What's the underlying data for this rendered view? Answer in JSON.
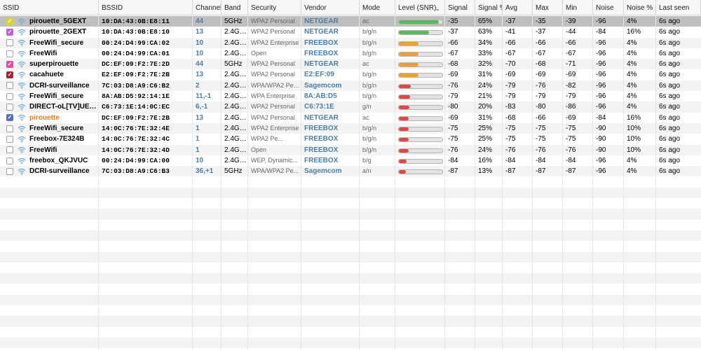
{
  "columns": [
    {
      "key": "ssid",
      "label": "SSID"
    },
    {
      "key": "bssid",
      "label": "BSSID"
    },
    {
      "key": "channel",
      "label": "Channel"
    },
    {
      "key": "band",
      "label": "Band"
    },
    {
      "key": "security",
      "label": "Security"
    },
    {
      "key": "vendor",
      "label": "Vendor"
    },
    {
      "key": "mode",
      "label": "Mode"
    },
    {
      "key": "level",
      "label": "Level (SNR)"
    },
    {
      "key": "signal",
      "label": "Signal"
    },
    {
      "key": "signal_pct",
      "label": "Signal %"
    },
    {
      "key": "avg",
      "label": "Avg"
    },
    {
      "key": "max",
      "label": "Max"
    },
    {
      "key": "min",
      "label": "Min"
    },
    {
      "key": "noise",
      "label": "Noise"
    },
    {
      "key": "noise_pct",
      "label": "Noise %"
    },
    {
      "key": "last_seen",
      "label": "Last seen"
    }
  ],
  "sort_indicator": "chevron-down-icon",
  "colors": {
    "green": "#5cb85c",
    "orange": "#f0a030",
    "red": "#e04848",
    "selected_row": "#bfbfbf",
    "link_blue": "#4a7ea8"
  },
  "rows": [
    {
      "checked": true,
      "check_color": "#d8d820",
      "selected": true,
      "ssid": "pirouette_5GEXT",
      "bssid": "10:DA:43:0B:E8:11",
      "channel": "44",
      "band": "5GHz",
      "security": "WPA2 Personal",
      "vendor": "NETGEAR",
      "mode": "ac",
      "level": 0.92,
      "level_color": "green",
      "signal": "-35",
      "signal_pct": "65%",
      "avg": "-37",
      "max": "-35",
      "min": "-39",
      "noise": "-96",
      "noise_pct": "4%",
      "last_seen": "6s ago"
    },
    {
      "checked": true,
      "check_color": "#c060e0",
      "selected": false,
      "ssid": "pirouette_2GEXT",
      "bssid": "10:DA:43:0B:E8:10",
      "channel": "13",
      "band": "2.4GHz",
      "security": "WPA2 Personal",
      "vendor": "NETGEAR",
      "mode": "b/g/n",
      "level": 0.7,
      "level_color": "green",
      "signal": "-37",
      "signal_pct": "63%",
      "avg": "-41",
      "max": "-37",
      "min": "-44",
      "noise": "-84",
      "noise_pct": "16%",
      "last_seen": "6s ago"
    },
    {
      "checked": false,
      "selected": false,
      "ssid": "FreeWifi_secure",
      "bssid": "00:24:D4:99:CA:02",
      "channel": "10",
      "band": "2.4GHz",
      "security": "WPA2 Enterprise",
      "vendor": "FREEBOX",
      "mode": "b/g/n",
      "level": 0.45,
      "level_color": "orange",
      "signal": "-66",
      "signal_pct": "34%",
      "avg": "-66",
      "max": "-66",
      "min": "-66",
      "noise": "-96",
      "noise_pct": "4%",
      "last_seen": "6s ago"
    },
    {
      "checked": false,
      "selected": false,
      "ssid": "FreeWifi",
      "bssid": "00:24:D4:99:CA:01",
      "channel": "10",
      "band": "2.4GHz",
      "security": "Open",
      "vendor": "FREEBOX",
      "mode": "b/g/n",
      "level": 0.45,
      "level_color": "orange",
      "signal": "-67",
      "signal_pct": "33%",
      "avg": "-67",
      "max": "-67",
      "min": "-67",
      "noise": "-96",
      "noise_pct": "4%",
      "last_seen": "6s ago"
    },
    {
      "checked": true,
      "check_color": "#e050a0",
      "selected": false,
      "ssid": "superpirouette",
      "bssid": "DC:EF:09:F2:7E:2D",
      "channel": "44",
      "band": "5GHz",
      "security": "WPA2 Personal",
      "vendor": "NETGEAR",
      "mode": "ac",
      "level": 0.45,
      "level_color": "orange",
      "signal": "-68",
      "signal_pct": "32%",
      "avg": "-70",
      "max": "-68",
      "min": "-71",
      "noise": "-96",
      "noise_pct": "4%",
      "last_seen": "6s ago"
    },
    {
      "checked": true,
      "check_color": "#a02830",
      "selected": false,
      "ssid": "cacahuete",
      "bssid": "E2:EF:09:F2:7E:2B",
      "channel": "13",
      "band": "2.4GHz",
      "security": "WPA2 Personal",
      "vendor": "E2:EF:09",
      "mode": "b/g/n",
      "level": 0.45,
      "level_color": "orange",
      "signal": "-69",
      "signal_pct": "31%",
      "avg": "-69",
      "max": "-69",
      "min": "-69",
      "noise": "-96",
      "noise_pct": "4%",
      "last_seen": "6s ago"
    },
    {
      "checked": false,
      "selected": false,
      "ssid": "DCRI-surveillance",
      "bssid": "7C:03:D8:A9:C6:B2",
      "channel": "2",
      "band": "2.4GHz",
      "security": "WPA/WPA2 Personal",
      "vendor": "Sagemcom",
      "mode": "b/g/n",
      "level": 0.28,
      "level_color": "red",
      "signal": "-76",
      "signal_pct": "24%",
      "avg": "-79",
      "max": "-76",
      "min": "-82",
      "noise": "-96",
      "noise_pct": "4%",
      "last_seen": "6s ago"
    },
    {
      "checked": false,
      "selected": false,
      "ssid": "FreeWifi_secure",
      "bssid": "8A:AB:D5:92:14:1E",
      "channel": "11,-1",
      "band": "2.4GHz",
      "security": "WPA Enterprise",
      "vendor": "8A:AB:D5",
      "mode": "b/g/n",
      "level": 0.26,
      "level_color": "red",
      "signal": "-79",
      "signal_pct": "21%",
      "avg": "-79",
      "max": "-79",
      "min": "-79",
      "noise": "-96",
      "noise_pct": "4%",
      "last_seen": "6s ago"
    },
    {
      "checked": false,
      "selected": false,
      "ssid": "DIRECT-oL[TV]UE4...",
      "bssid": "C6:73:1E:14:0C:EC",
      "channel": "6,-1",
      "band": "2.4GHz",
      "security": "WPA2 Personal",
      "vendor": "C6:73:1E",
      "mode": "g/n",
      "level": 0.24,
      "level_color": "red",
      "signal": "-80",
      "signal_pct": "20%",
      "avg": "-83",
      "max": "-80",
      "min": "-86",
      "noise": "-96",
      "noise_pct": "4%",
      "last_seen": "6s ago"
    },
    {
      "checked": true,
      "check_color": "#5070c0",
      "selected": false,
      "orange_ssid": true,
      "ssid": "pirouette",
      "bssid": "DC:EF:09:F2:7E:2B",
      "channel": "13",
      "band": "2.4GHz",
      "security": "WPA2 Personal",
      "vendor": "NETGEAR",
      "mode": "ac",
      "level": 0.22,
      "level_color": "red",
      "signal": "-69",
      "signal_pct": "31%",
      "avg": "-68",
      "max": "-66",
      "min": "-69",
      "noise": "-84",
      "noise_pct": "16%",
      "last_seen": "6s ago"
    },
    {
      "checked": false,
      "selected": false,
      "ssid": "FreeWifi_secure",
      "bssid": "14:0C:76:7E:32:4E",
      "channel": "1",
      "band": "2.4GHz",
      "security": "WPA2 Enterprise",
      "vendor": "FREEBOX",
      "mode": "b/g/n",
      "level": 0.22,
      "level_color": "red",
      "signal": "-75",
      "signal_pct": "25%",
      "avg": "-75",
      "max": "-75",
      "min": "-75",
      "noise": "-90",
      "noise_pct": "10%",
      "last_seen": "6s ago"
    },
    {
      "checked": false,
      "selected": false,
      "ssid": "Freebox-7E324B",
      "bssid": "14:0C:76:7E:32:4C",
      "channel": "1",
      "band": "2.4GHz",
      "security": "WPA2 Pe...",
      "vendor": "FREEBOX",
      "mode": "b/g/n",
      "level": 0.22,
      "level_color": "red",
      "signal": "-75",
      "signal_pct": "25%",
      "avg": "-75",
      "max": "-75",
      "min": "-75",
      "noise": "-90",
      "noise_pct": "10%",
      "last_seen": "6s ago"
    },
    {
      "checked": false,
      "selected": false,
      "ssid": "FreeWifi",
      "bssid": "14:0C:76:7E:32:4D",
      "channel": "1",
      "band": "2.4GHz",
      "security": "Open",
      "vendor": "FREEBOX",
      "mode": "b/g/n",
      "level": 0.22,
      "level_color": "red",
      "signal": "-76",
      "signal_pct": "24%",
      "avg": "-76",
      "max": "-76",
      "min": "-76",
      "noise": "-90",
      "noise_pct": "10%",
      "last_seen": "6s ago"
    },
    {
      "checked": false,
      "selected": false,
      "ssid": "freebox_QKJVUC",
      "bssid": "00:24:D4:99:CA:00",
      "channel": "10",
      "band": "2.4GHz",
      "security": "WEP, Dynamic...",
      "vendor": "FREEBOX",
      "mode": "b/g",
      "level": 0.18,
      "level_color": "red",
      "signal": "-84",
      "signal_pct": "16%",
      "avg": "-84",
      "max": "-84",
      "min": "-84",
      "noise": "-96",
      "noise_pct": "4%",
      "last_seen": "6s ago"
    },
    {
      "checked": false,
      "selected": false,
      "ssid": "DCRI-surveillance",
      "bssid": "7C:03:D8:A9:C6:B3",
      "channel": "36,+1",
      "band": "5GHz",
      "security": "WPA/WPA2 Pe...",
      "vendor": "Sagemcom",
      "mode": "a/n",
      "level": 0.16,
      "level_color": "red",
      "signal": "-87",
      "signal_pct": "13%",
      "avg": "-87",
      "max": "-87",
      "min": "-87",
      "noise": "-96",
      "noise_pct": "4%",
      "last_seen": "6s ago"
    }
  ]
}
